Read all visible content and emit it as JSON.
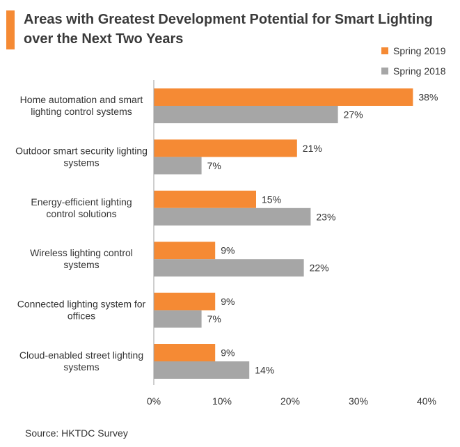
{
  "title": "Areas with Greatest Development Potential for Smart Lighting over the Next Two Years",
  "source": "Source: HKTDC Survey",
  "colors": {
    "accent": "#f58a34",
    "spring2019": "#f58a34",
    "spring2018": "#a6a6a6",
    "axis": "#9e9e9e"
  },
  "chart_data": {
    "type": "bar",
    "orientation": "horizontal",
    "title": "Areas with Greatest Development Potential for Smart Lighting over the Next Two Years",
    "categories": [
      [
        "Home automation and smart",
        "lighting control systems"
      ],
      [
        "Outdoor smart security lighting",
        "systems"
      ],
      [
        "Energy-efficient lighting",
        "control solutions"
      ],
      [
        "Wireless lighting control",
        "systems"
      ],
      [
        "Connected lighting system for",
        "offices"
      ],
      [
        "Cloud-enabled street lighting",
        "systems"
      ]
    ],
    "series": [
      {
        "name": "Spring 2019",
        "values": [
          38,
          21,
          15,
          9,
          9,
          9
        ],
        "color": "#f58a34"
      },
      {
        "name": "Spring 2018",
        "values": [
          27,
          7,
          23,
          22,
          7,
          14
        ],
        "color": "#a6a6a6"
      }
    ],
    "value_suffix": "%",
    "xlim": [
      0,
      40
    ],
    "xticks": [
      "0%",
      "10%",
      "20%",
      "30%",
      "40%"
    ],
    "grid": false,
    "legend": "top-right"
  }
}
